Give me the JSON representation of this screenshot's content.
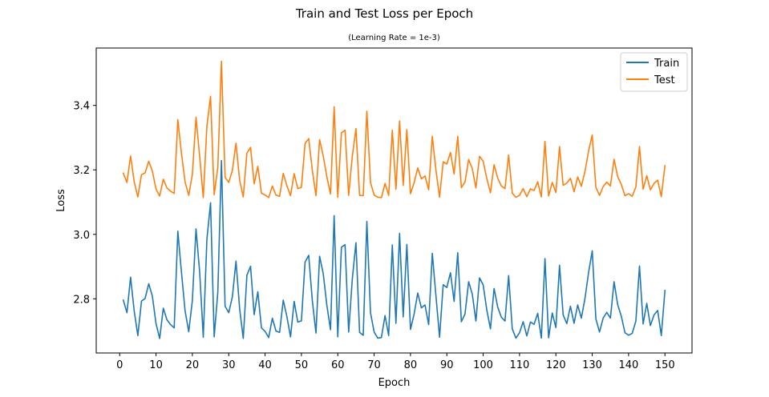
{
  "chart_data": {
    "type": "line",
    "title": "Train and Test Loss per Epoch",
    "subtitle": "(Learning Rate = 1e-3)",
    "xlabel": "Epoch",
    "ylabel": "Loss",
    "xlim": [
      -6.45,
      157.45
    ],
    "ylim": [
      2.632,
      3.578
    ],
    "xticks": [
      0,
      10,
      20,
      30,
      40,
      50,
      60,
      70,
      80,
      90,
      100,
      110,
      120,
      130,
      140,
      150
    ],
    "xtick_labels": [
      "0",
      "10",
      "20",
      "30",
      "40",
      "50",
      "60",
      "70",
      "80",
      "90",
      "100",
      "110",
      "120",
      "130",
      "140",
      "150"
    ],
    "yticks": [
      2.8,
      3.0,
      3.2,
      3.4
    ],
    "ytick_labels": [
      "2.8",
      "3.0",
      "3.2",
      "3.4"
    ],
    "grid": false,
    "legend": "top-right",
    "series": [
      {
        "name": "Train",
        "color": "#1f77b4",
        "x": [
          1,
          2,
          3,
          4,
          5,
          6,
          7,
          8,
          9,
          10,
          11,
          12,
          13,
          14,
          15,
          16,
          17,
          18,
          19,
          20,
          21,
          22,
          23,
          24,
          25,
          26,
          27,
          28,
          29,
          30,
          31,
          32,
          33,
          34,
          35,
          36,
          37,
          38,
          39,
          40,
          41,
          42,
          43,
          44,
          45,
          46,
          47,
          48,
          49,
          50,
          51,
          52,
          53,
          54,
          55,
          56,
          57,
          58,
          59,
          60,
          61,
          62,
          63,
          64,
          65,
          66,
          67,
          68,
          69,
          70,
          71,
          72,
          73,
          74,
          75,
          76,
          77,
          78,
          79,
          80,
          81,
          82,
          83,
          84,
          85,
          86,
          87,
          88,
          89,
          90,
          91,
          92,
          93,
          94,
          95,
          96,
          97,
          98,
          99,
          100,
          101,
          102,
          103,
          104,
          105,
          106,
          107,
          108,
          109,
          110,
          111,
          112,
          113,
          114,
          115,
          116,
          117,
          118,
          119,
          120,
          121,
          122,
          123,
          124,
          125,
          126,
          127,
          128,
          129,
          130,
          131,
          132,
          133,
          134,
          135,
          136,
          137,
          138,
          139,
          140,
          141,
          142,
          143,
          144,
          145,
          146,
          147,
          148,
          149,
          150
        ],
        "values": [
          2.796,
          2.757,
          2.867,
          2.762,
          2.686,
          2.793,
          2.801,
          2.847,
          2.808,
          2.723,
          2.677,
          2.771,
          2.735,
          2.72,
          2.71,
          3.01,
          2.882,
          2.762,
          2.698,
          2.795,
          3.017,
          2.884,
          2.681,
          2.985,
          3.098,
          2.682,
          2.821,
          3.229,
          2.777,
          2.757,
          2.806,
          2.917,
          2.769,
          2.677,
          2.873,
          2.901,
          2.751,
          2.822,
          2.71,
          2.699,
          2.68,
          2.74,
          2.7,
          2.696,
          2.796,
          2.745,
          2.682,
          2.792,
          2.728,
          2.732,
          2.914,
          2.935,
          2.794,
          2.694,
          2.932,
          2.878,
          2.78,
          2.704,
          3.058,
          2.682,
          2.96,
          2.968,
          2.697,
          2.862,
          2.974,
          2.696,
          2.687,
          3.04,
          2.757,
          2.697,
          2.678,
          2.68,
          2.748,
          2.686,
          2.967,
          2.724,
          3.003,
          2.744,
          2.969,
          2.705,
          2.753,
          2.818,
          2.772,
          2.781,
          2.72,
          2.941,
          2.81,
          2.681,
          2.844,
          2.835,
          2.881,
          2.792,
          2.943,
          2.729,
          2.753,
          2.853,
          2.815,
          2.731,
          2.865,
          2.843,
          2.765,
          2.707,
          2.832,
          2.774,
          2.743,
          2.731,
          2.872,
          2.707,
          2.678,
          2.695,
          2.729,
          2.685,
          2.728,
          2.721,
          2.755,
          2.678,
          2.925,
          2.679,
          2.756,
          2.711,
          2.904,
          2.75,
          2.723,
          2.777,
          2.724,
          2.781,
          2.74,
          2.801,
          2.882,
          2.949,
          2.738,
          2.697,
          2.74,
          2.758,
          2.74,
          2.853,
          2.782,
          2.746,
          2.695,
          2.687,
          2.693,
          2.731,
          2.902,
          2.722,
          2.786,
          2.717,
          2.75,
          2.764,
          2.686,
          2.826
        ]
      },
      {
        "name": "Test",
        "color": "#ff7f0e",
        "x": [
          1,
          2,
          3,
          4,
          5,
          6,
          7,
          8,
          9,
          10,
          11,
          12,
          13,
          14,
          15,
          16,
          17,
          18,
          19,
          20,
          21,
          22,
          23,
          24,
          25,
          26,
          27,
          28,
          29,
          30,
          31,
          32,
          33,
          34,
          35,
          36,
          37,
          38,
          39,
          40,
          41,
          42,
          43,
          44,
          45,
          46,
          47,
          48,
          49,
          50,
          51,
          52,
          53,
          54,
          55,
          56,
          57,
          58,
          59,
          60,
          61,
          62,
          63,
          64,
          65,
          66,
          67,
          68,
          69,
          70,
          71,
          72,
          73,
          74,
          75,
          76,
          77,
          78,
          79,
          80,
          81,
          82,
          83,
          84,
          85,
          86,
          87,
          88,
          89,
          90,
          91,
          92,
          93,
          94,
          95,
          96,
          97,
          98,
          99,
          100,
          101,
          102,
          103,
          104,
          105,
          106,
          107,
          108,
          109,
          110,
          111,
          112,
          113,
          114,
          115,
          116,
          117,
          118,
          119,
          120,
          121,
          122,
          123,
          124,
          125,
          126,
          127,
          128,
          129,
          130,
          131,
          132,
          133,
          134,
          135,
          136,
          137,
          138,
          139,
          140,
          141,
          142,
          143,
          144,
          145,
          146,
          147,
          148,
          149,
          150
        ],
        "values": [
          3.19,
          3.161,
          3.243,
          3.163,
          3.116,
          3.185,
          3.191,
          3.227,
          3.196,
          3.14,
          3.119,
          3.171,
          3.144,
          3.134,
          3.127,
          3.356,
          3.251,
          3.162,
          3.121,
          3.186,
          3.363,
          3.243,
          3.114,
          3.336,
          3.428,
          3.123,
          3.208,
          3.537,
          3.177,
          3.161,
          3.198,
          3.283,
          3.168,
          3.116,
          3.252,
          3.27,
          3.157,
          3.211,
          3.128,
          3.122,
          3.114,
          3.15,
          3.122,
          3.118,
          3.189,
          3.151,
          3.12,
          3.188,
          3.142,
          3.146,
          3.282,
          3.297,
          3.199,
          3.12,
          3.294,
          3.243,
          3.178,
          3.125,
          3.396,
          3.115,
          3.315,
          3.323,
          3.121,
          3.243,
          3.328,
          3.121,
          3.12,
          3.382,
          3.161,
          3.122,
          3.115,
          3.114,
          3.158,
          3.121,
          3.323,
          3.14,
          3.352,
          3.152,
          3.325,
          3.126,
          3.16,
          3.206,
          3.172,
          3.181,
          3.138,
          3.304,
          3.2,
          3.115,
          3.225,
          3.218,
          3.254,
          3.187,
          3.304,
          3.145,
          3.163,
          3.232,
          3.204,
          3.144,
          3.242,
          3.227,
          3.173,
          3.129,
          3.216,
          3.174,
          3.15,
          3.142,
          3.246,
          3.128,
          3.115,
          3.121,
          3.142,
          3.117,
          3.141,
          3.136,
          3.163,
          3.116,
          3.288,
          3.119,
          3.161,
          3.13,
          3.272,
          3.152,
          3.159,
          3.174,
          3.132,
          3.178,
          3.149,
          3.195,
          3.259,
          3.308,
          3.146,
          3.121,
          3.148,
          3.162,
          3.15,
          3.233,
          3.179,
          3.155,
          3.12,
          3.126,
          3.118,
          3.147,
          3.272,
          3.14,
          3.182,
          3.138,
          3.158,
          3.168,
          3.117,
          3.213
        ]
      }
    ]
  }
}
